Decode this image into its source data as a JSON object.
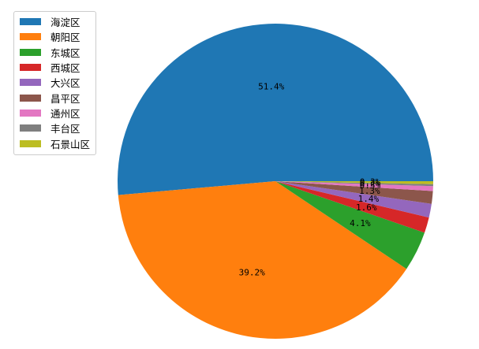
{
  "chart_data": {
    "type": "pie",
    "title": "",
    "categories": [
      "海淀区",
      "朝阳区",
      "东城区",
      "西城区",
      "大兴区",
      "昌平区",
      "通州区",
      "丰台区",
      "石景山区"
    ],
    "values": [
      51.4,
      39.2,
      4.1,
      1.6,
      1.4,
      1.3,
      0.5,
      0.2,
      0.3
    ],
    "labels": [
      "51.4%",
      "39.2%",
      "4.1%",
      "1.6%",
      "1.4%",
      "1.3%",
      "0.5%",
      "0.2%",
      "0.3%"
    ],
    "colors": [
      "#1f77b4",
      "#ff7f0e",
      "#2ca02c",
      "#d62728",
      "#9467bd",
      "#8c564b",
      "#e377c2",
      "#7f7f7f",
      "#bcbd22"
    ],
    "start_angle_deg": 0,
    "direction": "counterclockwise",
    "legend_position": "upper-left"
  }
}
